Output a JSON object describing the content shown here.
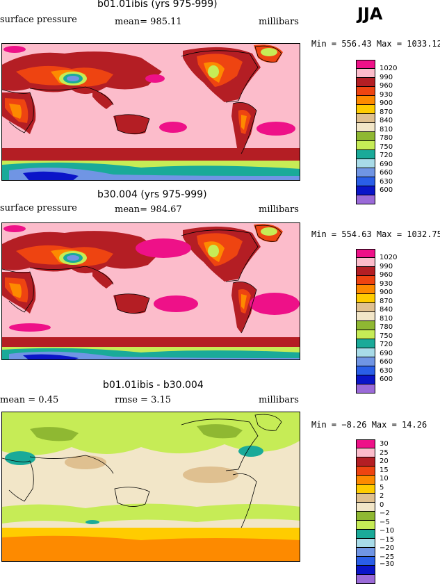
{
  "season": "JJA",
  "units": "millibars",
  "panels": [
    {
      "title": "b01.01ibis (yrs 975-999)",
      "left_label": "surface pressure",
      "stat_text": "mean=  985.11",
      "minmax_text": "Min = 556.43 Max = 1033.12",
      "legend": [
        "1020",
        "990",
        "960",
        "930",
        "900",
        "870",
        "840",
        "810",
        "780",
        "750",
        "720",
        "690",
        "660",
        "630",
        "600"
      ]
    },
    {
      "title": "b30.004 (yrs 975-999)",
      "left_label": "surface pressure",
      "stat_text": "mean=  984.67",
      "minmax_text": "Min = 554.63 Max = 1032.75",
      "legend": [
        "1020",
        "990",
        "960",
        "930",
        "900",
        "870",
        "840",
        "810",
        "780",
        "750",
        "720",
        "690",
        "660",
        "630",
        "600"
      ]
    },
    {
      "title": "b01.01ibis - b30.004",
      "left_label": "mean =    0.45",
      "stat_text": "rmse =    3.15",
      "minmax_text": "Min =  −8.26 Max =  14.26",
      "legend": [
        "30",
        "25",
        "20",
        "15",
        "10",
        "5",
        "2",
        "0",
        "−2",
        "−5",
        "−10",
        "−15",
        "−20",
        "−25",
        "−30"
      ]
    }
  ],
  "colors": {
    "pressure_scale": [
      "#ee1188",
      "#fcbccb",
      "#b41e24",
      "#ee4411",
      "#fd8a00",
      "#ffcc00",
      "#dfc090",
      "#f2e6c8",
      "#8fb832",
      "#c6ec56",
      "#1aaa99",
      "#a8dbe8",
      "#7095e4",
      "#2a5ee8",
      "#0a14c8",
      "#9a6ad8"
    ],
    "diff_scale": [
      "#ee1188",
      "#fcbccb",
      "#b41e24",
      "#ee4411",
      "#fd8a00",
      "#ffcc00",
      "#dfc090",
      "#f2e6c8",
      "#8fb832",
      "#c6ec56",
      "#1aaa99",
      "#a8dbe8",
      "#7095e4",
      "#2a5ee8",
      "#0a14c8",
      "#9a6ad8"
    ]
  },
  "chart_data": [
    {
      "type": "heatmap",
      "title": "b01.01ibis (yrs 975-999)",
      "field": "surface pressure",
      "units": "millibars",
      "mean": 985.11,
      "min": 556.43,
      "max": 1033.12,
      "levels": [
        600,
        630,
        660,
        690,
        720,
        750,
        780,
        810,
        840,
        870,
        900,
        930,
        960,
        990,
        1020
      ]
    },
    {
      "type": "heatmap",
      "title": "b30.004 (yrs 975-999)",
      "field": "surface pressure",
      "units": "millibars",
      "mean": 984.67,
      "min": 554.63,
      "max": 1032.75,
      "levels": [
        600,
        630,
        660,
        690,
        720,
        750,
        780,
        810,
        840,
        870,
        900,
        930,
        960,
        990,
        1020
      ]
    },
    {
      "type": "heatmap",
      "title": "b01.01ibis - b30.004",
      "units": "millibars",
      "mean": 0.45,
      "rmse": 3.15,
      "min": -8.26,
      "max": 14.26,
      "levels": [
        -30,
        -25,
        -20,
        -15,
        -10,
        -5,
        -2,
        0,
        2,
        5,
        10,
        15,
        20,
        25,
        30
      ]
    }
  ]
}
